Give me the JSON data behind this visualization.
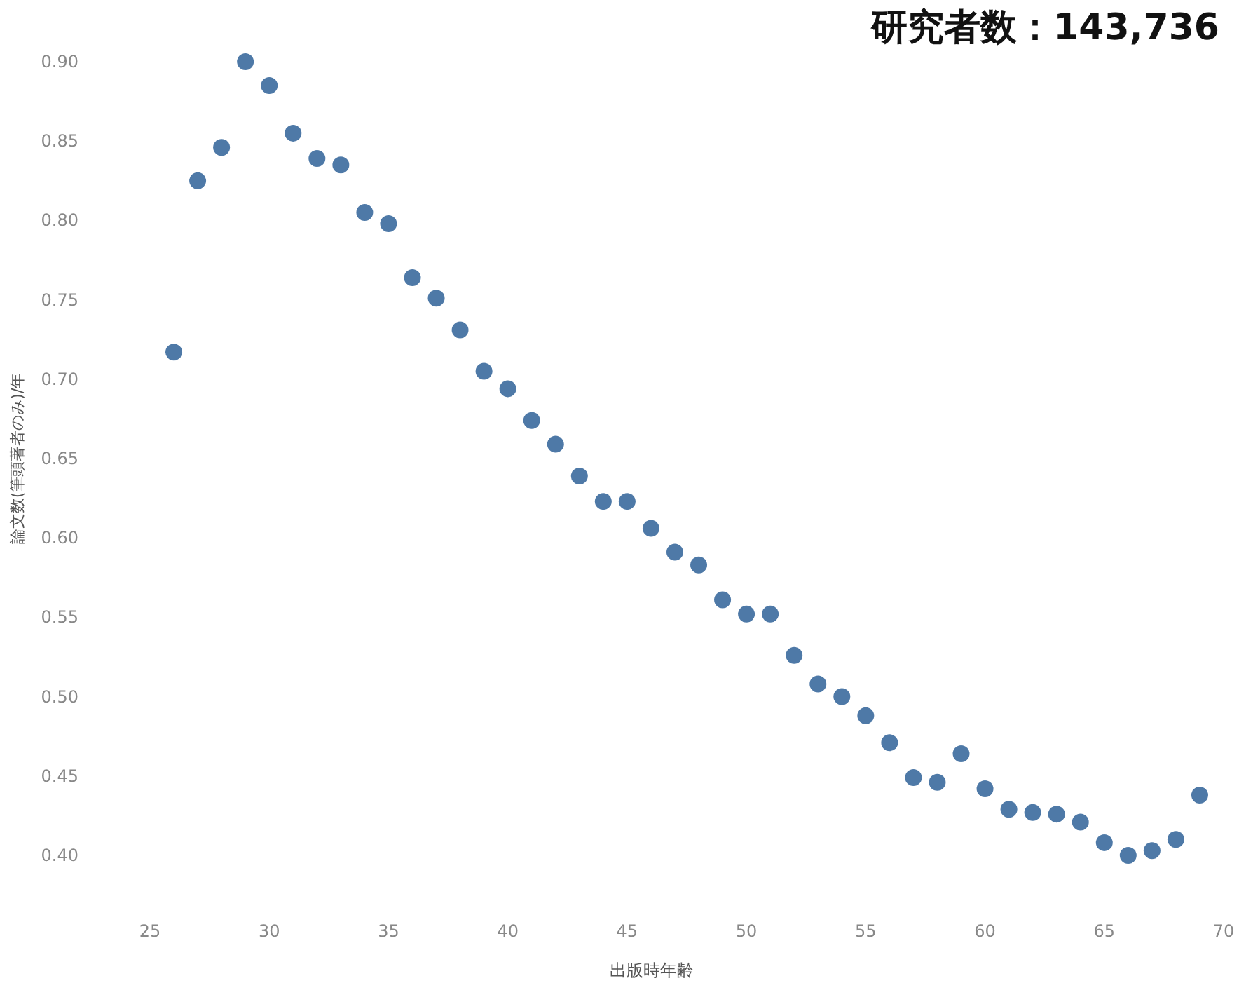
{
  "chart_data": {
    "type": "scatter",
    "title": "研究者数：143,736",
    "xlabel": "出版時年齢",
    "ylabel": "論文数(筆頭著者のみ)/年",
    "x": [
      26,
      27,
      28,
      29,
      30,
      31,
      32,
      33,
      34,
      35,
      36,
      37,
      38,
      39,
      40,
      41,
      42,
      43,
      44,
      45,
      46,
      47,
      48,
      49,
      50,
      51,
      52,
      53,
      54,
      55,
      56,
      57,
      58,
      59,
      60,
      61,
      62,
      63,
      64,
      65,
      66,
      67,
      68,
      69
    ],
    "series": [
      {
        "color": "#4e79a7",
        "values": [
          0.717,
          0.825,
          0.846,
          0.9,
          0.885,
          0.855,
          0.839,
          0.835,
          0.805,
          0.798,
          0.764,
          0.751,
          0.731,
          0.705,
          0.694,
          0.674,
          0.659,
          0.639,
          0.623,
          0.623,
          0.606,
          0.591,
          0.583,
          0.561,
          0.552,
          0.552,
          0.526,
          0.508,
          0.5,
          0.488,
          0.471,
          0.449,
          0.446,
          0.464,
          0.442,
          0.429,
          0.427,
          0.426,
          0.421,
          0.408,
          0.4,
          0.403,
          0.41,
          0.438
        ]
      }
    ],
    "xlim": [
      25,
      70
    ],
    "xticks": [
      25,
      30,
      35,
      40,
      45,
      50,
      55,
      60,
      65,
      70
    ],
    "ylim": [
      0.4,
      0.9
    ],
    "yticks": [
      {
        "value": 0.4,
        "label": "0.40"
      },
      {
        "value": 0.45,
        "label": "0.45"
      },
      {
        "value": 0.5,
        "label": "0.50"
      },
      {
        "value": 0.55,
        "label": "0.55"
      },
      {
        "value": 0.6,
        "label": "0.60"
      },
      {
        "value": 0.65,
        "label": "0.65"
      },
      {
        "value": 0.7,
        "label": "0.70"
      },
      {
        "value": 0.75,
        "label": "0.75"
      },
      {
        "value": 0.8,
        "label": "0.80"
      },
      {
        "value": 0.85,
        "label": "0.85"
      },
      {
        "value": 0.9,
        "label": "0.90"
      }
    ],
    "marker": "circle"
  }
}
